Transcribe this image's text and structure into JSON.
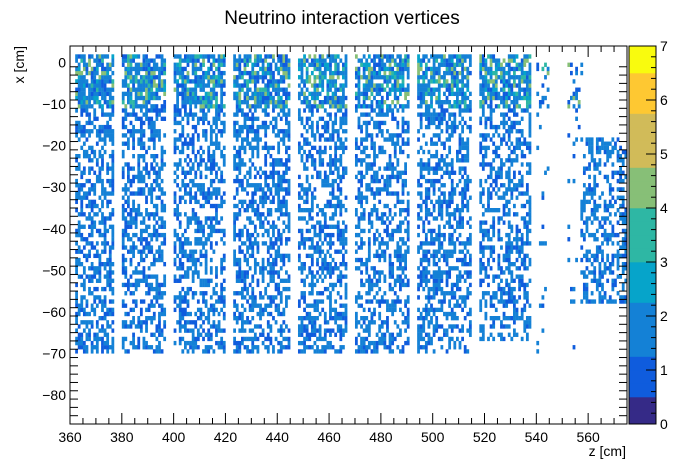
{
  "chart_data": {
    "type": "heatmap",
    "title": "Neutrino interaction vertices",
    "xlabel": "z [cm]",
    "ylabel": "x [cm]",
    "xlim": [
      360,
      575
    ],
    "ylim": [
      -87,
      4
    ],
    "x_ticks": [
      360,
      380,
      400,
      420,
      440,
      460,
      480,
      500,
      520,
      540,
      560
    ],
    "y_ticks": [
      0,
      -10,
      -20,
      -30,
      -40,
      -50,
      -60,
      -70,
      -80
    ],
    "y_tick_labels": [
      "0",
      "−10",
      "−20",
      "−30",
      "−40",
      "−50",
      "−60",
      "−70",
      "−80"
    ],
    "zlim": [
      0,
      7
    ],
    "z_ticks": [
      0,
      1,
      2,
      3,
      4,
      5,
      6,
      7
    ],
    "colormap": [
      "#352a87",
      "#0f5cdd",
      "#1481d6",
      "#06a4ca",
      "#2eb7a4",
      "#87bf77",
      "#d1bb59",
      "#fec832",
      "#f9fb0e"
    ],
    "regions": [
      {
        "z": [
          362,
          377
        ],
        "x": [
          -70,
          2
        ],
        "density": 0.55
      },
      {
        "z": [
          380,
          397
        ],
        "x": [
          -70,
          2
        ],
        "density": 0.5
      },
      {
        "z": [
          400,
          420
        ],
        "x": [
          -70,
          2
        ],
        "density": 0.5
      },
      {
        "z": [
          423,
          445
        ],
        "x": [
          -70,
          2
        ],
        "density": 0.5
      },
      {
        "z": [
          448,
          467
        ],
        "x": [
          -70,
          2
        ],
        "density": 0.5
      },
      {
        "z": [
          470,
          491
        ],
        "x": [
          -70,
          2
        ],
        "density": 0.5
      },
      {
        "z": [
          494,
          515
        ],
        "x": [
          -70,
          2
        ],
        "density": 0.48
      },
      {
        "z": [
          518,
          538
        ],
        "x": [
          -67,
          2
        ],
        "density": 0.46
      },
      {
        "z": [
          540,
          545
        ],
        "x": [
          -70,
          0
        ],
        "density": 0.05
      },
      {
        "z": [
          552,
          558
        ],
        "x": [
          -70,
          0
        ],
        "density": 0.05
      },
      {
        "z": [
          557,
          575
        ],
        "x": [
          -58,
          -18
        ],
        "density": 0.45
      }
    ]
  }
}
